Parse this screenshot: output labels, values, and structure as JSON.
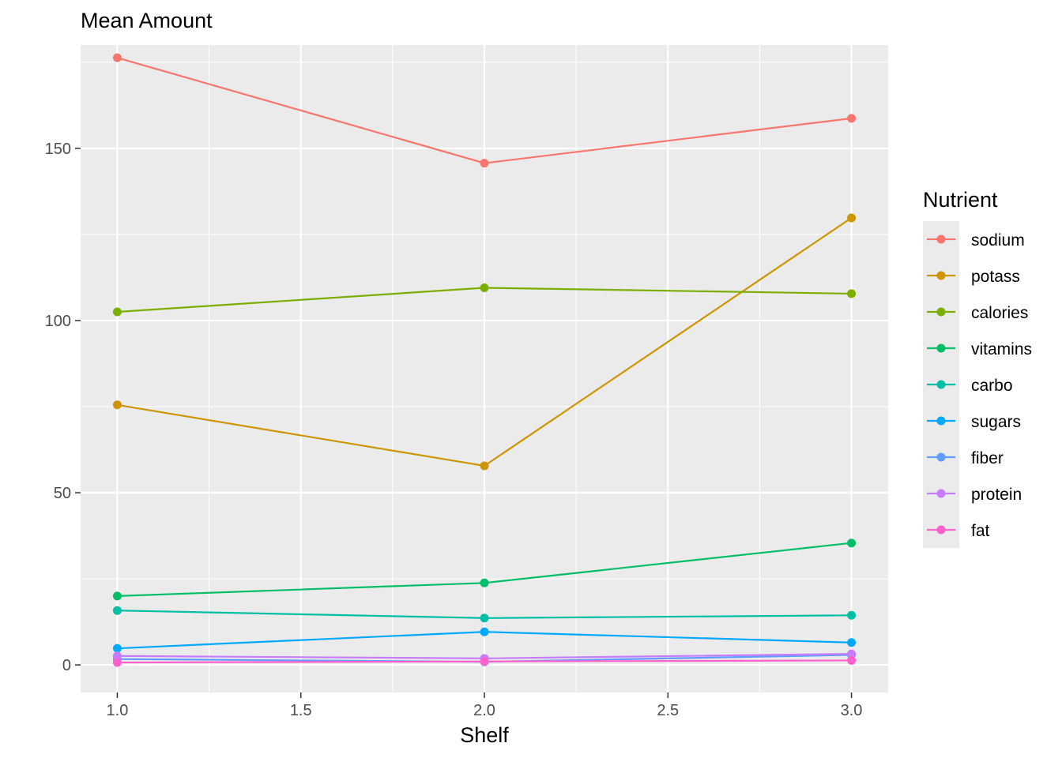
{
  "chart_data": {
    "type": "line",
    "title": "",
    "xlabel": "Shelf",
    "ylabel": "Mean Amount",
    "x": [
      1,
      2,
      3
    ],
    "xlim": [
      0.9,
      3.1
    ],
    "ylim": [
      -8,
      180
    ],
    "x_ticks": [
      1.0,
      1.5,
      2.0,
      2.5,
      3.0
    ],
    "x_tick_labels": [
      "1.0",
      "1.5",
      "2.0",
      "2.5",
      "3.0"
    ],
    "y_ticks": [
      0,
      50,
      100,
      150
    ],
    "y_tick_labels": [
      "0",
      "50",
      "100",
      "150"
    ],
    "grid": true,
    "legend": {
      "title": "Nutrient",
      "placement": "right"
    },
    "series": [
      {
        "name": "sodium",
        "color": "#F8766D",
        "values": [
          176.3,
          145.7,
          158.7
        ]
      },
      {
        "name": "potass",
        "color": "#CD9600",
        "values": [
          75.5,
          57.8,
          129.8
        ]
      },
      {
        "name": "calories",
        "color": "#7CAE00",
        "values": [
          102.5,
          109.5,
          107.8
        ]
      },
      {
        "name": "vitamins",
        "color": "#00BE67",
        "values": [
          20.0,
          23.8,
          35.4
        ]
      },
      {
        "name": "carbo",
        "color": "#00BFA4",
        "values": [
          15.8,
          13.6,
          14.4
        ]
      },
      {
        "name": "sugars",
        "color": "#00A9FF",
        "values": [
          4.8,
          9.6,
          6.5
        ]
      },
      {
        "name": "fiber",
        "color": "#619CFF",
        "values": [
          1.7,
          0.9,
          2.9
        ]
      },
      {
        "name": "protein",
        "color": "#C77CFF",
        "values": [
          2.6,
          1.9,
          3.2
        ]
      },
      {
        "name": "fat",
        "color": "#FF61CC",
        "values": [
          0.7,
          1.0,
          1.3
        ]
      }
    ]
  }
}
